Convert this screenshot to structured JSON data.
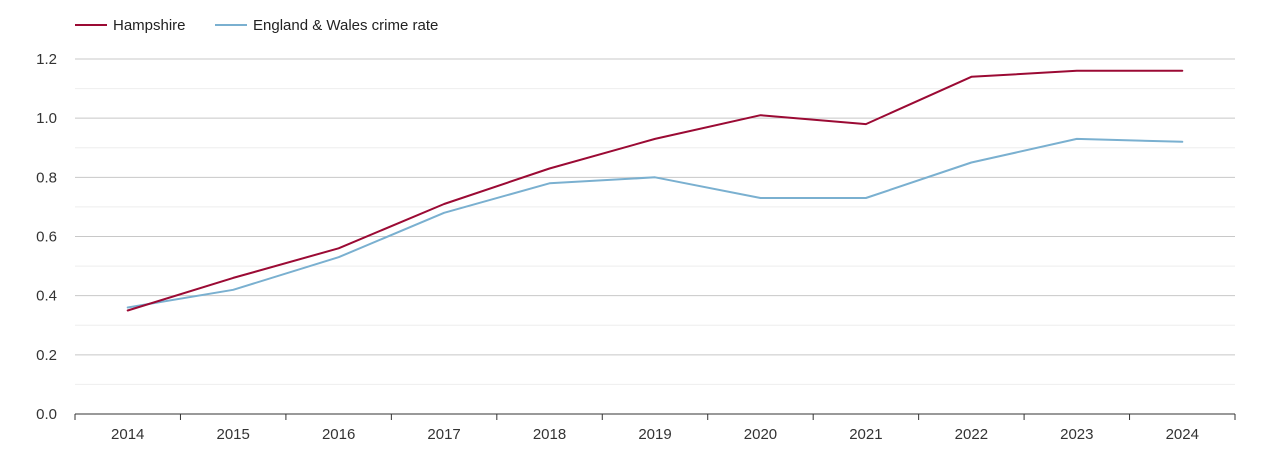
{
  "chart_data": {
    "type": "line",
    "title": "",
    "xlabel": "",
    "ylabel": "",
    "categories": [
      "2014",
      "2015",
      "2016",
      "2017",
      "2018",
      "2019",
      "2020",
      "2021",
      "2022",
      "2023",
      "2024"
    ],
    "ylim": [
      0,
      1.2
    ],
    "yticks": [
      "0.0",
      "0.2",
      "0.4",
      "0.6",
      "0.8",
      "1.0",
      "1.2"
    ],
    "grid": true,
    "legend_position": "top-left",
    "series": [
      {
        "name": "Hampshire",
        "color": "#9b0a34",
        "values": [
          0.35,
          0.46,
          0.56,
          0.71,
          0.83,
          0.93,
          1.01,
          0.98,
          1.14,
          1.16,
          1.16
        ]
      },
      {
        "name": "England & Wales crime rate",
        "color": "#7ab0d0",
        "values": [
          0.36,
          0.42,
          0.53,
          0.68,
          0.78,
          0.8,
          0.73,
          0.73,
          0.85,
          0.93,
          0.92
        ]
      }
    ]
  }
}
